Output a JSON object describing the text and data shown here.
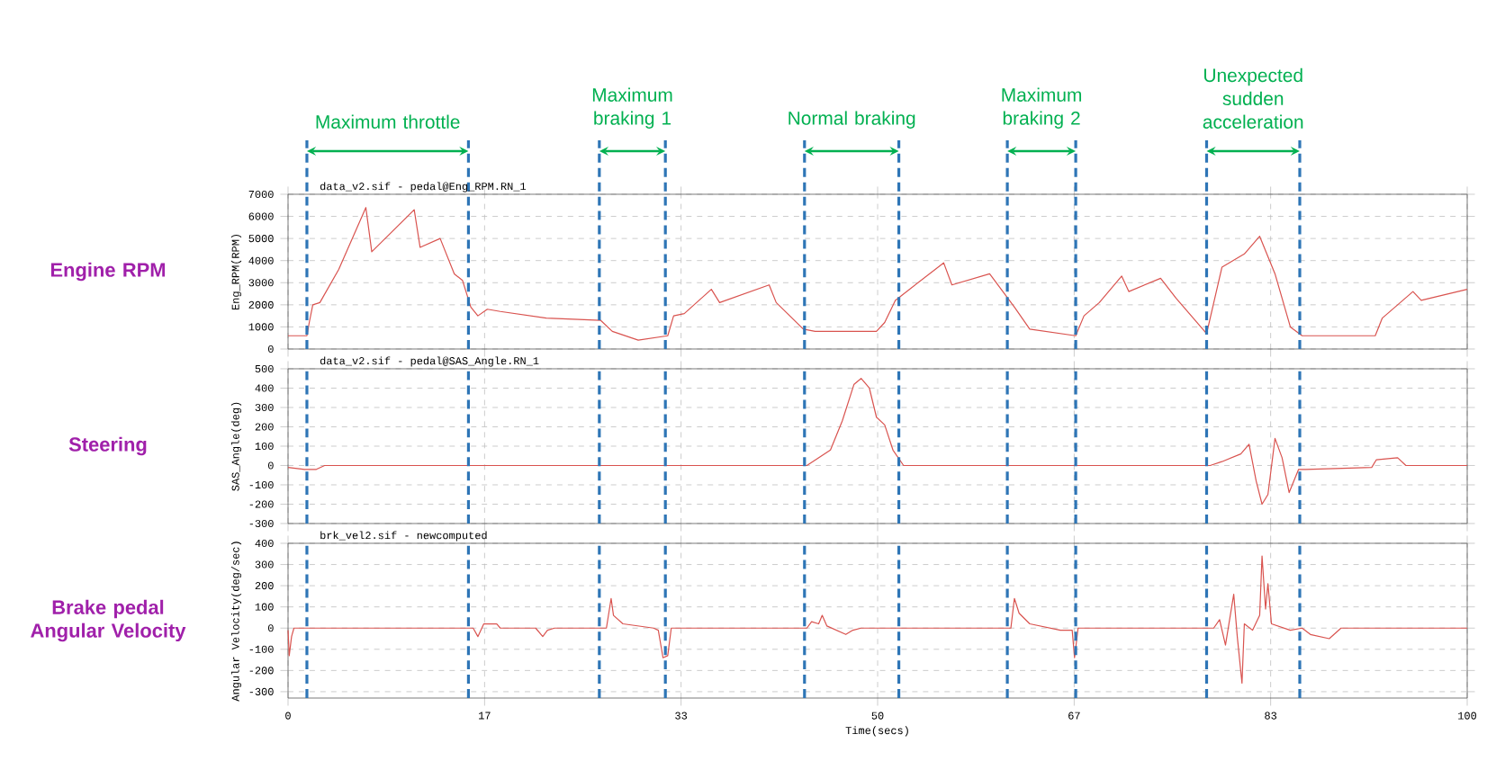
{
  "chart_data": [
    {
      "type": "line",
      "title": "Engine RPM",
      "subtitle": "data_v2.sif - pedal@Eng_RPM.RN_1",
      "ylabel": "Eng_RPM(RPM)",
      "xlim": [
        0,
        100
      ],
      "ylim": [
        0,
        7000
      ],
      "xticks": [
        {
          "value": 0,
          "label": null
        },
        {
          "value": 16.67,
          "label": null
        },
        {
          "value": 33.33,
          "label": null
        },
        {
          "value": 50,
          "label": null
        },
        {
          "value": 66.67,
          "label": null
        },
        {
          "value": 83.33,
          "label": null
        },
        {
          "value": 100,
          "label": null
        }
      ],
      "yticks": [
        0,
        1000,
        2000,
        3000,
        4000,
        5000,
        6000,
        7000
      ],
      "tick_labels": "y",
      "grid": true,
      "x": [
        0,
        1.6,
        1.8,
        2.1,
        2.7,
        4.3,
        6.6,
        7.1,
        10.7,
        11.2,
        12.9,
        14.1,
        14.8,
        15.5,
        16.1,
        16.9,
        18,
        21.9,
        26.5,
        27.5,
        29.7,
        32.2,
        32.7,
        33.6,
        35.9,
        36.6,
        40.8,
        41.4,
        43.7,
        44.7,
        49.9,
        50.6,
        51.5,
        55.6,
        56.3,
        59.5,
        61.6,
        62.9,
        66.8,
        67.5,
        68.8,
        70.7,
        71.3,
        74,
        75.3,
        77.9,
        79.2,
        81.1,
        82.4,
        83.7,
        85,
        86,
        92.2,
        92.8,
        95.4,
        96.1,
        100
      ],
      "series": [
        {
          "color": "#d9534f",
          "values": [
            600,
            600,
            1200,
            2000,
            2100,
            3600,
            6400,
            4400,
            6300,
            4600,
            5000,
            3400,
            3100,
            1900,
            1500,
            1800,
            1700,
            1400,
            1300,
            800,
            400,
            600,
            1500,
            1600,
            2700,
            2100,
            2900,
            2100,
            900,
            800,
            800,
            1200,
            2200,
            3900,
            2900,
            3400,
            1900,
            900,
            600,
            1500,
            2100,
            3300,
            2600,
            3200,
            2300,
            700,
            3700,
            4300,
            5100,
            3400,
            1000,
            600,
            600,
            1400,
            2600,
            2200,
            2700
          ]
        }
      ],
      "ref_lines": [
        {
          "axis": "x",
          "value": 1.6,
          "color": "#2e75b6",
          "line_style": "dashed"
        },
        {
          "axis": "x",
          "value": 15.3,
          "color": "#2e75b6",
          "line_style": "dashed"
        },
        {
          "axis": "x",
          "value": 26.4,
          "color": "#2e75b6",
          "line_style": "dashed"
        },
        {
          "axis": "x",
          "value": 32.0,
          "color": "#2e75b6",
          "line_style": "dashed"
        },
        {
          "axis": "x",
          "value": 43.8,
          "color": "#2e75b6",
          "line_style": "dashed"
        },
        {
          "axis": "x",
          "value": 51.8,
          "color": "#2e75b6",
          "line_style": "dashed"
        },
        {
          "axis": "x",
          "value": 61.0,
          "color": "#2e75b6",
          "line_style": "dashed"
        },
        {
          "axis": "x",
          "value": 66.8,
          "color": "#2e75b6",
          "line_style": "dashed"
        },
        {
          "axis": "x",
          "value": 77.9,
          "color": "#2e75b6",
          "line_style": "dashed"
        },
        {
          "axis": "x",
          "value": 85.8,
          "color": "#2e75b6",
          "line_style": "dashed"
        }
      ],
      "annotations": [
        "Maximum throttle",
        "Maximum braking 1",
        "Normal braking",
        "Maximum braking 2",
        "Unexpected sudden acceleration"
      ]
    },
    {
      "type": "line",
      "title": "Steering",
      "subtitle": "data_v2.sif - pedal@SAS_Angle.RN_1",
      "ylabel": "SAS_Angle(deg)",
      "xlim": [
        0,
        100
      ],
      "ylim": [
        -300,
        500
      ],
      "xticks": [
        {
          "value": 0,
          "label": null
        },
        {
          "value": 16.67,
          "label": null
        },
        {
          "value": 33.33,
          "label": null
        },
        {
          "value": 50,
          "label": null
        },
        {
          "value": 66.67,
          "label": null
        },
        {
          "value": 83.33,
          "label": null
        },
        {
          "value": 100,
          "label": null
        }
      ],
      "yticks": [
        -300,
        -200,
        -100,
        0,
        100,
        200,
        300,
        400,
        500
      ],
      "tick_labels": "y",
      "grid": true,
      "x": [
        0,
        1.4,
        2.4,
        3.1,
        44,
        46,
        47,
        48,
        48.6,
        49.3,
        49.9,
        50.6,
        51.3,
        52.2,
        78.2,
        79.2,
        80.8,
        81.5,
        82.1,
        82.6,
        83.1,
        83.7,
        84.3,
        84.9,
        85.7,
        86.3,
        91.9,
        92.3,
        94.1,
        94.8,
        100
      ],
      "series": [
        {
          "color": "#d9534f",
          "values": [
            -10,
            -20,
            -20,
            0,
            0,
            80,
            230,
            420,
            450,
            400,
            250,
            210,
            80,
            0,
            0,
            20,
            60,
            110,
            -80,
            -200,
            -150,
            140,
            40,
            -140,
            -20,
            -20,
            -10,
            30,
            40,
            0,
            0
          ]
        }
      ],
      "ref_lines": [
        {
          "axis": "x",
          "value": 1.6,
          "color": "#2e75b6",
          "line_style": "dashed"
        },
        {
          "axis": "x",
          "value": 15.3,
          "color": "#2e75b6",
          "line_style": "dashed"
        },
        {
          "axis": "x",
          "value": 26.4,
          "color": "#2e75b6",
          "line_style": "dashed"
        },
        {
          "axis": "x",
          "value": 32.0,
          "color": "#2e75b6",
          "line_style": "dashed"
        },
        {
          "axis": "x",
          "value": 43.8,
          "color": "#2e75b6",
          "line_style": "dashed"
        },
        {
          "axis": "x",
          "value": 51.8,
          "color": "#2e75b6",
          "line_style": "dashed"
        },
        {
          "axis": "x",
          "value": 61.0,
          "color": "#2e75b6",
          "line_style": "dashed"
        },
        {
          "axis": "x",
          "value": 66.8,
          "color": "#2e75b6",
          "line_style": "dashed"
        },
        {
          "axis": "x",
          "value": 77.9,
          "color": "#2e75b6",
          "line_style": "dashed"
        },
        {
          "axis": "x",
          "value": 85.8,
          "color": "#2e75b6",
          "line_style": "dashed"
        }
      ]
    },
    {
      "type": "line",
      "title": "Brake pedal Angular Velocity",
      "subtitle": "brk_vel2.sif - newcomputed",
      "ylabel": "Angular Velocity(deg/sec)",
      "xlabel": "Time(secs)",
      "xlim": [
        0,
        100
      ],
      "ylim": [
        -330,
        400
      ],
      "xticks": [
        0,
        {
          "value": 16.67,
          "label": "17"
        },
        {
          "value": 33.33,
          "label": "33"
        },
        50,
        {
          "value": 66.67,
          "label": "67"
        },
        {
          "value": 83.33,
          "label": "83"
        },
        100
      ],
      "yticks": [
        -300,
        -200,
        -100,
        0,
        100,
        200,
        300,
        400
      ],
      "grid": true,
      "x": [
        0,
        0.1,
        0.3,
        0.5,
        15.7,
        16.1,
        16.6,
        17.7,
        18,
        21,
        21.6,
        22,
        22.6,
        27,
        27.4,
        27.6,
        28.4,
        31,
        31.4,
        31.8,
        32.2,
        32.5,
        44,
        44.4,
        45,
        45.3,
        45.7,
        47.3,
        47.9,
        48.6,
        61.3,
        61.6,
        62,
        62.9,
        65.5,
        66.5,
        66.7,
        67,
        78.5,
        79,
        79.5,
        80.2,
        80.5,
        80.9,
        81.1,
        81.8,
        82.4,
        82.6,
        82.9,
        83.1,
        83.4,
        85,
        86,
        86.7,
        88.3,
        89.3,
        100
      ],
      "series": [
        {
          "color": "#d9534f",
          "values": [
            -10,
            -130,
            -40,
            0,
            0,
            -40,
            20,
            20,
            0,
            0,
            -40,
            -10,
            0,
            0,
            140,
            60,
            20,
            0,
            -10,
            -140,
            -130,
            0,
            0,
            30,
            20,
            60,
            10,
            -30,
            -10,
            0,
            0,
            140,
            70,
            20,
            -10,
            -10,
            -140,
            0,
            0,
            40,
            -80,
            160,
            -40,
            -260,
            20,
            -10,
            60,
            340,
            90,
            210,
            20,
            -10,
            0,
            -30,
            -50,
            0,
            0
          ]
        }
      ],
      "ref_lines": [
        {
          "axis": "x",
          "value": 1.6,
          "color": "#2e75b6",
          "line_style": "dashed"
        },
        {
          "axis": "x",
          "value": 15.3,
          "color": "#2e75b6",
          "line_style": "dashed"
        },
        {
          "axis": "x",
          "value": 26.4,
          "color": "#2e75b6",
          "line_style": "dashed"
        },
        {
          "axis": "x",
          "value": 32.0,
          "color": "#2e75b6",
          "line_style": "dashed"
        },
        {
          "axis": "x",
          "value": 43.8,
          "color": "#2e75b6",
          "line_style": "dashed"
        },
        {
          "axis": "x",
          "value": 51.8,
          "color": "#2e75b6",
          "line_style": "dashed"
        },
        {
          "axis": "x",
          "value": 61.0,
          "color": "#2e75b6",
          "line_style": "dashed"
        },
        {
          "axis": "x",
          "value": 66.8,
          "color": "#2e75b6",
          "line_style": "dashed"
        },
        {
          "axis": "x",
          "value": 77.9,
          "color": "#2e75b6",
          "line_style": "dashed"
        },
        {
          "axis": "x",
          "value": 85.8,
          "color": "#2e75b6",
          "line_style": "dashed"
        }
      ]
    }
  ]
}
